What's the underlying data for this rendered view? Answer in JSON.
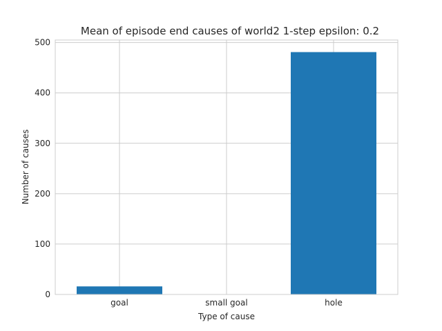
{
  "chart_data": {
    "type": "bar",
    "title": "Mean of episode end causes of world2 1-step epsilon: 0.2",
    "xlabel": "Type of cause",
    "ylabel": "Number of causes",
    "categories": [
      "goal",
      "small goal",
      "hole"
    ],
    "values": [
      16,
      0,
      481
    ],
    "ylim": [
      0,
      505
    ],
    "yticks": [
      0,
      100,
      200,
      300,
      400,
      500
    ],
    "grid": true,
    "bar_color": "#1f77b4"
  }
}
